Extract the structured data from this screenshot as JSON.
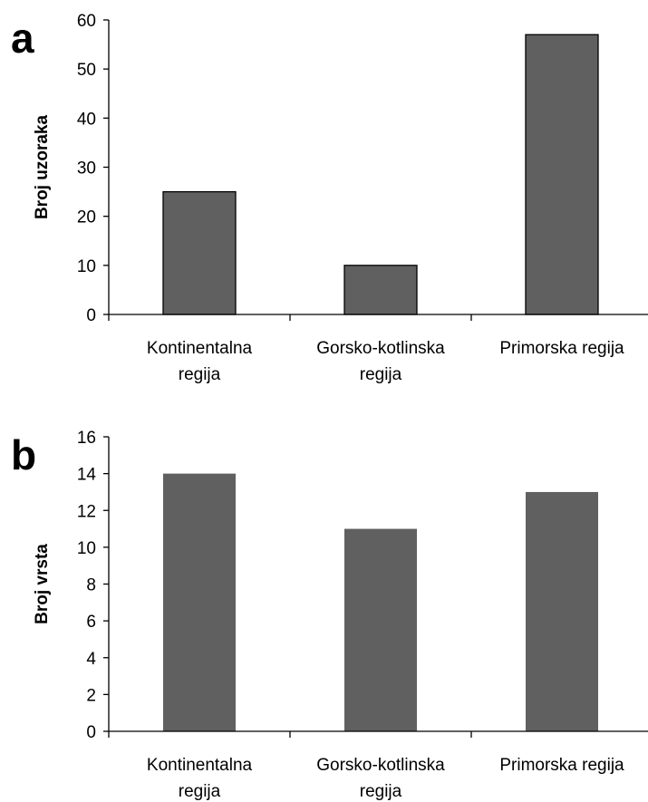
{
  "chart_data": [
    {
      "type": "bar",
      "panel_label": "a",
      "categories": [
        [
          "Kontinentalna",
          "regija"
        ],
        [
          "Gorsko-kotlinska",
          "regija"
        ],
        [
          "Primorska regija"
        ]
      ],
      "values": [
        25,
        10,
        57
      ],
      "ylabel": "Broj uzoraka",
      "xlabel": "",
      "ylim": [
        0,
        60
      ],
      "ytick_step": 10,
      "bar_color": "#606060",
      "bar_outline": "#000000",
      "grid": false
    },
    {
      "type": "bar",
      "panel_label": "b",
      "categories": [
        [
          "Kontinentalna",
          "regija"
        ],
        [
          "Gorsko-kotlinska",
          "regija"
        ],
        [
          "Primorska regija"
        ]
      ],
      "values": [
        14,
        11,
        13
      ],
      "ylabel": "Broj vrsta",
      "xlabel": "",
      "ylim": [
        0,
        16
      ],
      "ytick_step": 2,
      "bar_color": "#606060",
      "bar_outline": "none",
      "grid": false
    }
  ]
}
